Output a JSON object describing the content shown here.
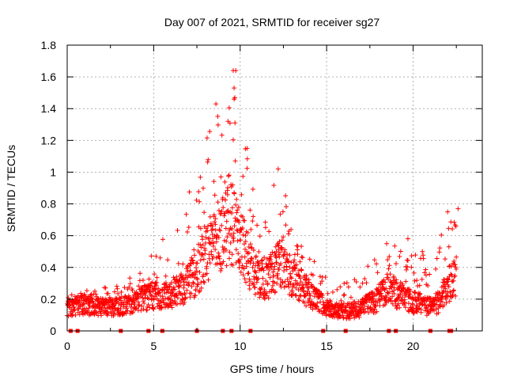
{
  "chart_data": {
    "type": "scatter",
    "title": "Day 007 of 2021, SRMTID for receiver sg27",
    "xlabel": "GPS time / hours",
    "ylabel": "SRMTID / TECUs",
    "xlim": [
      0,
      24
    ],
    "ylim": [
      0,
      1.8
    ],
    "xticks": [
      0,
      5,
      10,
      15,
      20
    ],
    "xtick_labels": [
      "0",
      "5",
      "10",
      "15",
      "20"
    ],
    "yticks": [
      0,
      0.2,
      0.4,
      0.6,
      0.8,
      1,
      1.2,
      1.4,
      1.6,
      1.8
    ],
    "ytick_labels": [
      "0",
      "0.2",
      "0.4",
      "0.6",
      "0.8",
      "1",
      "1.2",
      "1.4",
      "1.6",
      "1.8"
    ],
    "grid": true,
    "marker": "+",
    "marker_color": "#ff0000",
    "series_profile": {
      "x": [
        0,
        1,
        2,
        3,
        4,
        4.8,
        5.5,
        6.5,
        7.5,
        8.0,
        8.5,
        9.0,
        9.5,
        10.0,
        10.5,
        11.0,
        11.5,
        12.0,
        12.5,
        13.0,
        14.0,
        15.0,
        16.0,
        17.0,
        18.0,
        18.6,
        19.0,
        20.0,
        21.0,
        21.5,
        22.0,
        22.5
      ],
      "y_median": [
        0.16,
        0.18,
        0.17,
        0.17,
        0.2,
        0.25,
        0.24,
        0.28,
        0.4,
        0.55,
        0.62,
        0.7,
        0.75,
        0.65,
        0.48,
        0.36,
        0.36,
        0.42,
        0.48,
        0.38,
        0.26,
        0.17,
        0.13,
        0.16,
        0.22,
        0.32,
        0.26,
        0.2,
        0.17,
        0.2,
        0.32,
        0.4
      ],
      "y_max": [
        0.24,
        0.25,
        0.3,
        0.3,
        0.38,
        0.52,
        0.65,
        0.72,
        1.0,
        1.18,
        1.43,
        1.32,
        1.64,
        1.3,
        1.15,
        0.65,
        0.7,
        1.02,
        0.95,
        0.62,
        0.48,
        0.38,
        0.3,
        0.38,
        0.47,
        0.58,
        0.58,
        0.52,
        0.5,
        0.6,
        0.75,
        0.77
      ]
    },
    "highlight_points": [
      {
        "x": 8.6,
        "y": 1.43
      },
      {
        "x": 9.6,
        "y": 1.64
      },
      {
        "x": 9.75,
        "y": 1.64
      },
      {
        "x": 9.65,
        "y": 1.53
      },
      {
        "x": 9.65,
        "y": 1.46
      },
      {
        "x": 9.3,
        "y": 1.32
      },
      {
        "x": 10.4,
        "y": 1.15
      },
      {
        "x": 12.2,
        "y": 1.02
      },
      {
        "x": 22.0,
        "y": 0.75
      },
      {
        "x": 22.6,
        "y": 0.77
      },
      {
        "x": 19.7,
        "y": 0.58
      }
    ],
    "rug_markers_x": [
      0.2,
      0.6,
      3.1,
      4.7,
      5.5,
      7.5,
      9.0,
      9.5,
      10.6,
      14.8,
      16.1,
      18.6,
      19.0,
      21.0,
      22.1,
      22.2
    ],
    "rug_y": 0
  }
}
